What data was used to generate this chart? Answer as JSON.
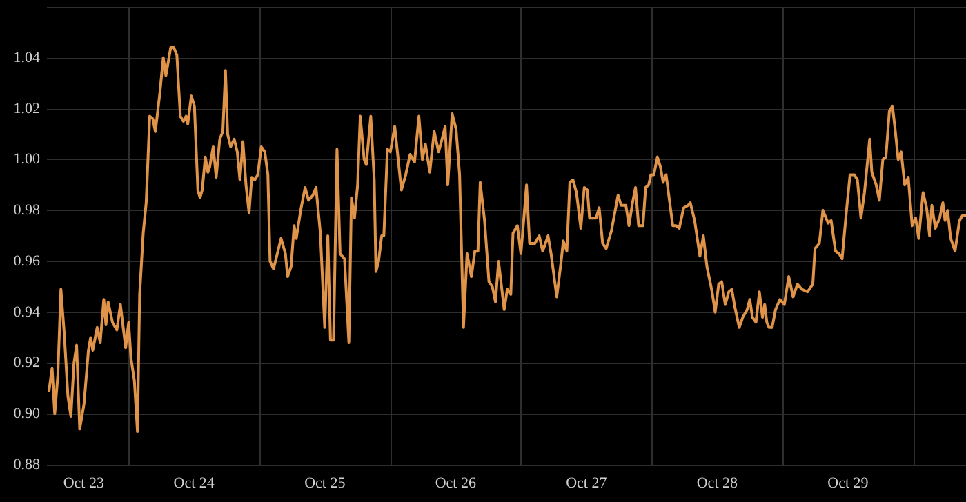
{
  "chart_data": {
    "type": "line",
    "color": "#e0944a",
    "grid": true,
    "marker": "none",
    "line_style": "solid",
    "xlim": [
      "--10-22T21:00",
      "--10-29T21:40"
    ],
    "xticks": [
      {
        "value": "--10-23",
        "label": "Oct 23"
      },
      {
        "value": "--10-23T12:00",
        "label": null
      },
      {
        "value": "--10-24",
        "label": "Oct 24"
      },
      {
        "value": "--10-24T12:00",
        "label": null
      },
      {
        "value": "--10-25",
        "label": "Oct 25"
      },
      {
        "value": "--10-25T12:00",
        "label": null
      },
      {
        "value": "--10-26",
        "label": "Oct 26"
      },
      {
        "value": "--10-26T12:00",
        "label": null
      },
      {
        "value": "--10-27",
        "label": "Oct 27"
      },
      {
        "value": "--10-27T12:00",
        "label": null
      },
      {
        "value": "--10-28",
        "label": "Oct 28"
      },
      {
        "value": "--10-28T12:00",
        "label": null
      },
      {
        "value": "--10-29",
        "label": "Oct 29"
      },
      {
        "value": "--10-29T12:00",
        "label": null
      }
    ],
    "ylim": [
      0.88,
      1.06
    ],
    "yticks": [
      0.88,
      {
        "value": 0.9,
        "label": "0.90"
      },
      0.92,
      0.94,
      0.96,
      0.98,
      {
        "value": 1.0,
        "label": "1.00"
      },
      1.02,
      1.04,
      {
        "value": 1.06,
        "label": null
      }
    ],
    "x": [
      "--10-22T21:23",
      "--10-22T21:57",
      "--10-22T22:26",
      "--10-22T23:00",
      "--10-22T23:34",
      "--10-23T00:12",
      "--10-23T00:51",
      "--10-23T01:24",
      "--10-23T01:58",
      "--10-23T02:27",
      "--10-23T03:01",
      "--10-23T03:49",
      "--10-23T04:37",
      "--10-23T05:01",
      "--10-23T05:25",
      "--10-23T06:13",
      "--10-23T06:47",
      "--10-23T07:26",
      "--10-23T07:50",
      "--10-23T08:14",
      "--10-23T09:02",
      "--10-23T09:50",
      "--10-23T10:29",
      "--10-23T11:03",
      "--10-23T11:27",
      "--10-23T12:00",
      "--10-23T12:25",
      "--10-23T13:03",
      "--10-23T13:37",
      "--10-23T14:01",
      "--10-23T14:40",
      "--10-23T15:13",
      "--10-23T15:52",
      "--10-23T16:26",
      "--10-23T16:54",
      "--10-23T17:43",
      "--10-23T18:21",
      "--10-23T18:50",
      "--10-23T19:19",
      "--10-23T19:43",
      "--10-23T20:17",
      "--10-23T20:51",
      "--10-23T21:29",
      "--10-23T22:03",
      "--10-23T22:32",
      "--10-23T22:51",
      "--10-23T23:30",
      "--10-24T00:04",
      "--10-24T00:42",
      "--10-24T01:06",
      "--10-24T01:30",
      "--10-24T02:04",
      "--10-24T02:32",
      "--10-24T02:52",
      "--10-24T03:31",
      "--10-24T04:04",
      "--10-24T04:43",
      "--10-24T05:17",
      "--10-24T05:46",
      "--10-24T06:10",
      "--10-24T06:43",
      "--10-24T07:22",
      "--10-24T07:56",
      "--10-24T08:25",
      "--10-24T08:58",
      "--10-24T09:32",
      "--10-24T10:06",
      "--10-24T10:35",
      "--10-24T11:08",
      "--10-24T11:42",
      "--10-24T12:20",
      "--10-24T12:59",
      "--10-24T13:33",
      "--10-24T13:57",
      "--10-24T14:35",
      "--10-24T15:10",
      "--10-24T15:58",
      "--10-24T16:46",
      "--10-24T17:10",
      "--10-24T17:49",
      "--10-24T18:22",
      "--10-24T18:46",
      "--10-24T19:34",
      "--10-24T20:23",
      "--10-24T21:01",
      "--10-24T21:49",
      "--10-24T22:23",
      "--10-24T23:11",
      "--10-24T23:59",
      "--10-25T00:33",
      "--10-25T01:02",
      "--10-25T01:36",
      "--10-25T02:14",
      "--10-25T02:48",
      "--10-25T03:37",
      "--10-25T04:25",
      "--10-25T04:53",
      "--10-25T05:27",
      "--10-25T06:01",
      "--10-25T06:30",
      "--10-25T07:13",
      "--10-25T07:37",
      "--10-25T08:26",
      "--10-25T09:04",
      "--10-25T09:23",
      "--10-25T09:52",
      "--10-25T10:26",
      "--10-25T10:50",
      "--10-25T11:29",
      "--10-25T12:02",
      "--10-25T12:50",
      "--10-25T14:03",
      "--10-25T14:51",
      "--10-25T15:39",
      "--10-25T16:28",
      "--10-25T17:16",
      "--10-25T17:54",
      "--10-25T18:28",
      "--10-25T19:16",
      "--10-25T20:04",
      "--10-25T20:53",
      "--10-25T21:31",
      "--10-25T22:05",
      "--10-25T22:34",
      "--10-25T23:22",
      "--10-26T00:05",
      "--10-26T00:44",
      "--10-26T01:27",
      "--10-26T02:06",
      "--10-26T02:54",
      "--10-26T03:32",
      "--10-26T04:06",
      "--10-26T04:31",
      "--10-26T05:19",
      "--10-26T06:07",
      "--10-26T06:45",
      "--10-26T07:19",
      "--10-26T07:53",
      "--10-26T08:55",
      "--10-26T09:29",
      "--10-26T10:08",
      "--10-26T10:32",
      "--10-26T11:20",
      "--10-26T11:59",
      "--10-26T12:32",
      "--10-26T13:01",
      "--10-26T13:35",
      "--10-26T14:33",
      "--10-26T15:21",
      "--10-26T15:59",
      "--10-26T16:58",
      "--10-26T17:31",
      "--10-26T18:34",
      "--10-26T19:22",
      "--10-26T19:46",
      "--10-26T20:25",
      "--10-26T20:58",
      "--10-26T21:32",
      "--10-26T22:11",
      "--10-26T22:59",
      "--10-26T23:37",
      "--10-27T00:11",
      "--10-27T00:35",
      "--10-27T01:47",
      "--10-27T02:21",
      "--10-27T02:59",
      "--10-27T03:38",
      "--10-27T04:36",
      "--10-27T05:49",
      "--10-27T06:22",
      "--10-27T07:15",
      "--10-27T07:49",
      "--10-27T08:28",
      "--10-27T09:01",
      "--10-27T09:35",
      "--10-27T10:23",
      "--10-27T10:52",
      "--10-27T11:26",
      "--10-27T11:50",
      "--10-27T12:23",
      "--10-27T13:02",
      "--10-27T13:36",
      "--10-27T14:05",
      "--10-27T14:38",
      "--10-27T15:51",
      "--10-27T16:29",
      "--10-27T17:03",
      "--10-27T17:51",
      "--10-27T18:40",
      "--10-27T19:04",
      "--10-27T19:52",
      "--10-27T20:50",
      "--10-27T21:28",
      "--10-27T22:07",
      "--10-27T23:04",
      "--10-27T23:38",
      "--10-28T00:17",
      "--10-28T00:50",
      "--10-28T01:29",
      "--10-28T02:08",
      "--10-28T02:41",
      "--10-28T03:15",
      "--10-28T04:03",
      "--10-28T04:42",
      "--10-28T05:30",
      "--10-28T05:59",
      "--10-28T06:28",
      "--10-28T07:07",
      "--10-28T07:45",
      "--10-28T08:19",
      "--10-28T08:43",
      "--10-28T09:07",
      "--10-28T09:31",
      "--10-28T10:05",
      "--10-28T10:43",
      "--10-28T11:31",
      "--10-28T12:20",
      "--10-28T13:08",
      "--10-28T13:56",
      "--10-28T14:44",
      "--10-28T15:32",
      "--10-28T16:35",
      "--10-28T17:33",
      "--10-28T17:57",
      "--10-28T18:45",
      "--10-28T19:24",
      "--10-28T20:22",
      "--10-28T20:55",
      "--10-28T21:43",
      "--10-28T22:22",
      "--10-28T22:56",
      "--10-28T23:44",
      "--10-29T00:23",
      "--10-29T01:11",
      "--10-29T01:44",
      "--10-29T02:23",
      "--10-29T03:02",
      "--10-29T03:59",
      "--10-29T04:23",
      "--10-29T05:11",
      "--10-29T05:46",
      "--10-29T06:24",
      "--10-29T06:58",
      "--10-29T07:36",
      "--10-29T08:10",
      "--10-29T08:39",
      "--10-29T09:13",
      "--10-29T09:46",
      "--10-29T10:25",
      "--10-29T11:04",
      "--10-29T11:47",
      "--10-29T12:25",
      "--10-29T12:59",
      "--10-29T13:47",
      "--10-29T14:26",
      "--10-29T14:59",
      "--10-29T15:24",
      "--10-29T16:02",
      "--10-29T16:50",
      "--10-29T17:25",
      "--10-29T17:49",
      "--10-29T18:17",
      "--10-29T18:51",
      "--10-29T19:39",
      "--10-29T20:28",
      "--10-29T21:01",
      "--10-29T21:31"
    ],
    "values": [
      0.909,
      0.918,
      0.9,
      0.915,
      0.949,
      0.931,
      0.907,
      0.899,
      0.92,
      0.927,
      0.894,
      0.904,
      0.925,
      0.93,
      0.925,
      0.934,
      0.928,
      0.945,
      0.935,
      0.944,
      0.936,
      0.933,
      0.943,
      0.933,
      0.926,
      0.936,
      0.922,
      0.913,
      0.893,
      0.947,
      0.971,
      0.983,
      1.017,
      1.016,
      1.011,
      1.026,
      1.04,
      1.033,
      1.039,
      1.044,
      1.044,
      1.041,
      1.017,
      1.015,
      1.017,
      1.014,
      1.025,
      1.021,
      0.988,
      0.985,
      0.988,
      1.001,
      0.995,
      0.997,
      1.005,
      0.993,
      1.008,
      1.011,
      1.035,
      1.01,
      1.005,
      1.008,
      1.003,
      0.992,
      1.007,
      0.99,
      0.979,
      0.993,
      0.992,
      0.994,
      1.005,
      1.003,
      0.994,
      0.96,
      0.957,
      0.962,
      0.969,
      0.963,
      0.954,
      0.958,
      0.974,
      0.969,
      0.98,
      0.989,
      0.984,
      0.986,
      0.989,
      0.971,
      0.934,
      0.97,
      0.929,
      0.929,
      1.004,
      0.963,
      0.961,
      0.928,
      0.985,
      0.977,
      0.99,
      1.017,
      1.0,
      0.998,
      1.017,
      0.992,
      0.956,
      0.96,
      0.97,
      0.97,
      1.004,
      1.003,
      1.013,
      0.988,
      0.994,
      1.002,
      0.999,
      1.017,
      1.0,
      1.006,
      0.995,
      1.011,
      1.003,
      1.008,
      1.013,
      0.99,
      1.018,
      1.012,
      0.994,
      0.934,
      0.963,
      0.954,
      0.964,
      0.964,
      0.991,
      0.976,
      0.952,
      0.95,
      0.944,
      0.96,
      0.941,
      0.949,
      0.947,
      0.971,
      0.974,
      0.963,
      0.977,
      0.99,
      0.967,
      0.967,
      0.97,
      0.964,
      0.97,
      0.963,
      0.946,
      0.96,
      0.968,
      0.964,
      0.991,
      0.992,
      0.987,
      0.973,
      0.989,
      0.988,
      0.977,
      0.977,
      0.981,
      0.967,
      0.965,
      0.972,
      0.986,
      0.982,
      0.982,
      0.974,
      0.983,
      0.989,
      0.974,
      0.974,
      0.989,
      0.99,
      0.994,
      0.994,
      1.001,
      0.997,
      0.991,
      0.994,
      0.974,
      0.974,
      0.973,
      0.981,
      0.982,
      0.983,
      0.976,
      0.962,
      0.97,
      0.958,
      0.948,
      0.94,
      0.951,
      0.952,
      0.943,
      0.948,
      0.949,
      0.942,
      0.934,
      0.938,
      0.941,
      0.945,
      0.938,
      0.936,
      0.948,
      0.938,
      0.943,
      0.936,
      0.934,
      0.934,
      0.941,
      0.945,
      0.943,
      0.954,
      0.946,
      0.951,
      0.949,
      0.948,
      0.951,
      0.965,
      0.967,
      0.98,
      0.975,
      0.976,
      0.964,
      0.963,
      0.961,
      0.98,
      0.994,
      0.994,
      0.992,
      0.977,
      0.987,
      1.008,
      0.995,
      0.99,
      0.984,
      1.0,
      1.001,
      1.019,
      1.021,
      1.012,
      1.0,
      1.003,
      0.99,
      0.993,
      0.974,
      0.977,
      0.969,
      0.987,
      0.981,
      0.97,
      0.982,
      0.973,
      0.977,
      0.983,
      0.976,
      0.98,
      0.969,
      0.964,
      0.976,
      0.978,
      0.978
    ]
  }
}
